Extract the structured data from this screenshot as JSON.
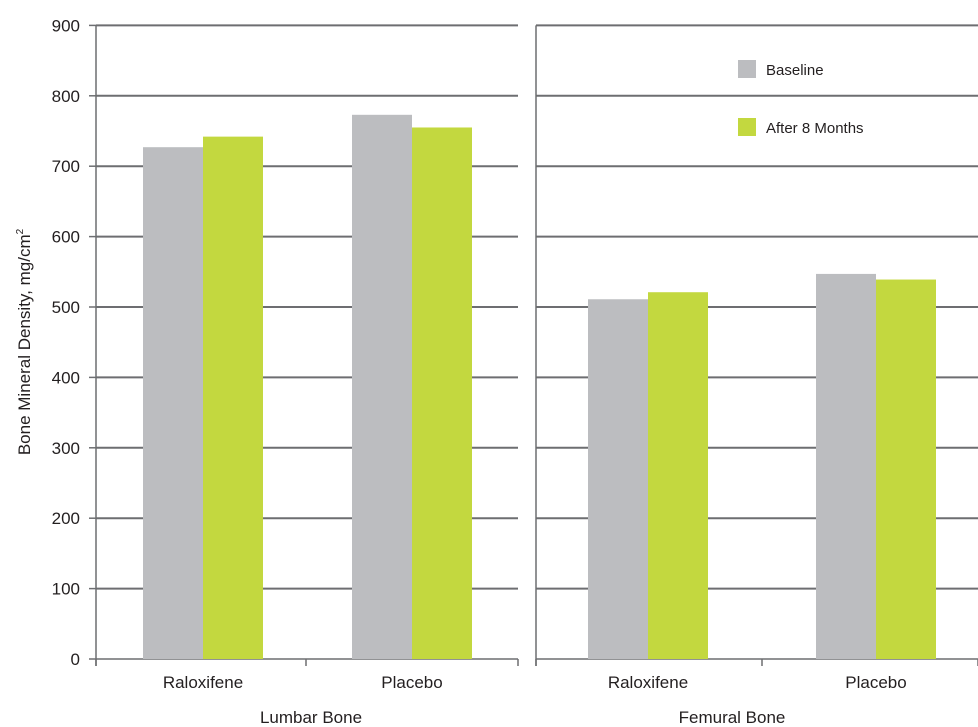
{
  "chart_data": {
    "type": "bar",
    "ylabel": "Bone Mineral Density, mg/cm",
    "ylabel_superscript": "2",
    "ylim": [
      0,
      900
    ],
    "yticks": [
      "0",
      "100",
      "200",
      "300",
      "400",
      "500",
      "600",
      "700",
      "800",
      "900"
    ],
    "grid": true,
    "legend_position": "top-right",
    "series": [
      {
        "name": "Baseline",
        "color": "#bcbdc0"
      },
      {
        "name": "After 8 Months",
        "color": "#c3d83f"
      }
    ],
    "panels": [
      {
        "xlabel": "Lumbar Bone",
        "categories": [
          "Raloxifene",
          "Placebo"
        ],
        "values": [
          [
            727,
            742
          ],
          [
            773,
            755
          ]
        ]
      },
      {
        "xlabel": "Femural Bone",
        "categories": [
          "Raloxifene",
          "Placebo"
        ],
        "values": [
          [
            511,
            521
          ],
          [
            547,
            539
          ]
        ]
      }
    ]
  }
}
